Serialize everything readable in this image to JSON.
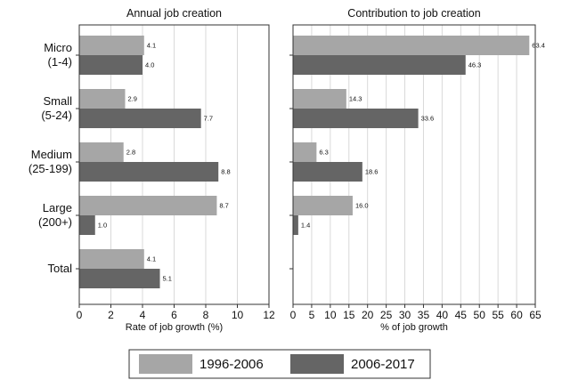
{
  "chart_data": [
    {
      "type": "bar",
      "orientation": "horizontal",
      "title": "Annual job creation",
      "xlabel": "Rate of job growth (%)",
      "xlim": [
        0,
        12
      ],
      "xticks": [
        0,
        2,
        4,
        6,
        8,
        10,
        12
      ],
      "grid": true,
      "categories": [
        "Micro\n(1-4)",
        "Small\n(5-24)",
        "Medium\n(25-199)",
        "Large\n(200+)",
        "Total"
      ],
      "series": [
        {
          "name": "1996-2006",
          "color": "#a6a6a6",
          "values": [
            4.1,
            2.9,
            2.8,
            8.7,
            4.1
          ]
        },
        {
          "name": "2006-2017",
          "color": "#656565",
          "values": [
            4.0,
            7.7,
            8.8,
            1.0,
            5.1
          ]
        }
      ]
    },
    {
      "type": "bar",
      "orientation": "horizontal",
      "title": "Contribution to job creation",
      "xlabel": "% of job growth",
      "xlim": [
        0,
        65
      ],
      "xticks": [
        0,
        5,
        10,
        15,
        20,
        25,
        30,
        35,
        40,
        45,
        50,
        55,
        60,
        65
      ],
      "grid": true,
      "categories": [
        "Micro\n(1-4)",
        "Small\n(5-24)",
        "Medium\n(25-199)",
        "Large\n(200+)",
        "Total"
      ],
      "series": [
        {
          "name": "1996-2006",
          "color": "#a6a6a6",
          "values": [
            63.4,
            14.3,
            6.3,
            16.0,
            null
          ]
        },
        {
          "name": "2006-2017",
          "color": "#656565",
          "values": [
            46.3,
            33.6,
            18.6,
            1.4,
            null
          ]
        }
      ]
    }
  ],
  "legend": {
    "position": "bottom",
    "items": [
      {
        "label": "1996-2006",
        "color": "#a6a6a6"
      },
      {
        "label": "2006-2017",
        "color": "#656565"
      }
    ]
  }
}
